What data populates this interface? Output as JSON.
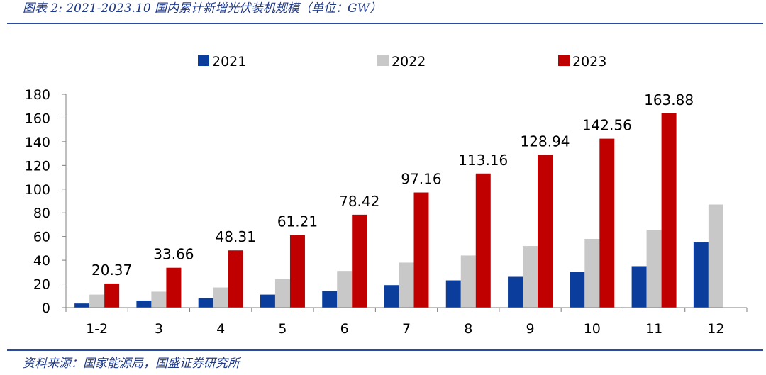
{
  "header": {
    "title": "图表 2:  2021-2023.10 国内累计新增光伏装机规模（单位：GW）"
  },
  "footer": {
    "source": "资料来源：国家能源局，国盛证券研究所"
  },
  "chart_data": {
    "type": "bar",
    "categories": [
      "1-2",
      "3",
      "4",
      "5",
      "6",
      "7",
      "8",
      "9",
      "10",
      "11",
      "12"
    ],
    "series": [
      {
        "name": "2021",
        "color": "#0b3e9c",
        "values": [
          3.5,
          6,
          8,
          11,
          14,
          19,
          23,
          26,
          30,
          35,
          55
        ]
      },
      {
        "name": "2022",
        "color": "#c8c8c8",
        "values": [
          11,
          13.5,
          17,
          24,
          31,
          38,
          44,
          52,
          58,
          65.5,
          87
        ]
      },
      {
        "name": "2023",
        "color": "#c00000",
        "values": [
          20.37,
          33.66,
          48.31,
          61.21,
          78.42,
          97.16,
          113.16,
          128.94,
          142.56,
          163.88,
          null
        ],
        "labels": [
          "20.37",
          "33.66",
          "48.31",
          "61.21",
          "78.42",
          "97.16",
          "113.16",
          "128.94",
          "142.56",
          "163.88",
          ""
        ]
      }
    ],
    "yticks": [
      "0",
      "20",
      "40",
      "60",
      "80",
      "100",
      "120",
      "140",
      "160",
      "180"
    ],
    "ylim": [
      0,
      180
    ],
    "legend_position": "top-center",
    "grid": false
  }
}
